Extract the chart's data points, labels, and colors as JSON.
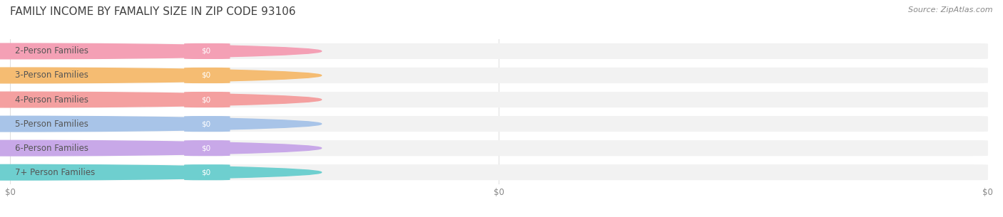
{
  "title": "FAMILY INCOME BY FAMALIY SIZE IN ZIP CODE 93106",
  "source_text": "Source: ZipAtlas.com",
  "categories": [
    "2-Person Families",
    "3-Person Families",
    "4-Person Families",
    "5-Person Families",
    "6-Person Families",
    "7+ Person Families"
  ],
  "values": [
    0,
    0,
    0,
    0,
    0,
    0
  ],
  "bar_colors": [
    "#f4a0b5",
    "#f5bc72",
    "#f4a0a0",
    "#a8c4e8",
    "#c8a8e8",
    "#6ecfcf"
  ],
  "label_color": "#555555",
  "value_label_color": "#ffffff",
  "title_color": "#404040",
  "background_color": "#ffffff",
  "bar_bg_color": "#f2f2f2",
  "title_fontsize": 11,
  "label_fontsize": 8.5,
  "source_fontsize": 8
}
